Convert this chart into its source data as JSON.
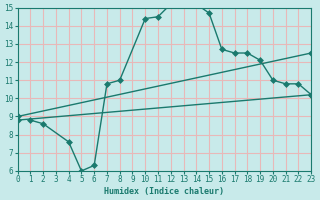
{
  "bg_color": "#c8eaea",
  "line_color": "#1a7a6e",
  "grid_color": "#e8b8b8",
  "xlabel": "Humidex (Indice chaleur)",
  "xlim": [
    0,
    23
  ],
  "ylim": [
    6,
    15
  ],
  "yticks": [
    6,
    7,
    8,
    9,
    10,
    11,
    12,
    13,
    14,
    15
  ],
  "xticks": [
    0,
    1,
    2,
    3,
    4,
    5,
    6,
    7,
    8,
    9,
    10,
    11,
    12,
    13,
    14,
    15,
    16,
    17,
    18,
    19,
    20,
    21,
    22,
    23
  ],
  "curve1_x": [
    1,
    2,
    4,
    5,
    6,
    7,
    8,
    10,
    11,
    12,
    13,
    14,
    15,
    16,
    17,
    18,
    19,
    20,
    21,
    22,
    23
  ],
  "curve1_y": [
    8.8,
    8.6,
    7.6,
    6.0,
    6.3,
    10.8,
    11.0,
    14.4,
    14.5,
    15.2,
    15.2,
    15.2,
    14.7,
    12.7,
    12.5,
    12.5,
    12.1,
    11.0,
    10.8,
    10.8,
    10.2
  ],
  "curve2_x": [
    0,
    23
  ],
  "curve2_y": [
    9.0,
    12.5
  ],
  "curve3_x": [
    0,
    23
  ],
  "curve3_y": [
    8.8,
    10.2
  ],
  "marker_size": 3
}
